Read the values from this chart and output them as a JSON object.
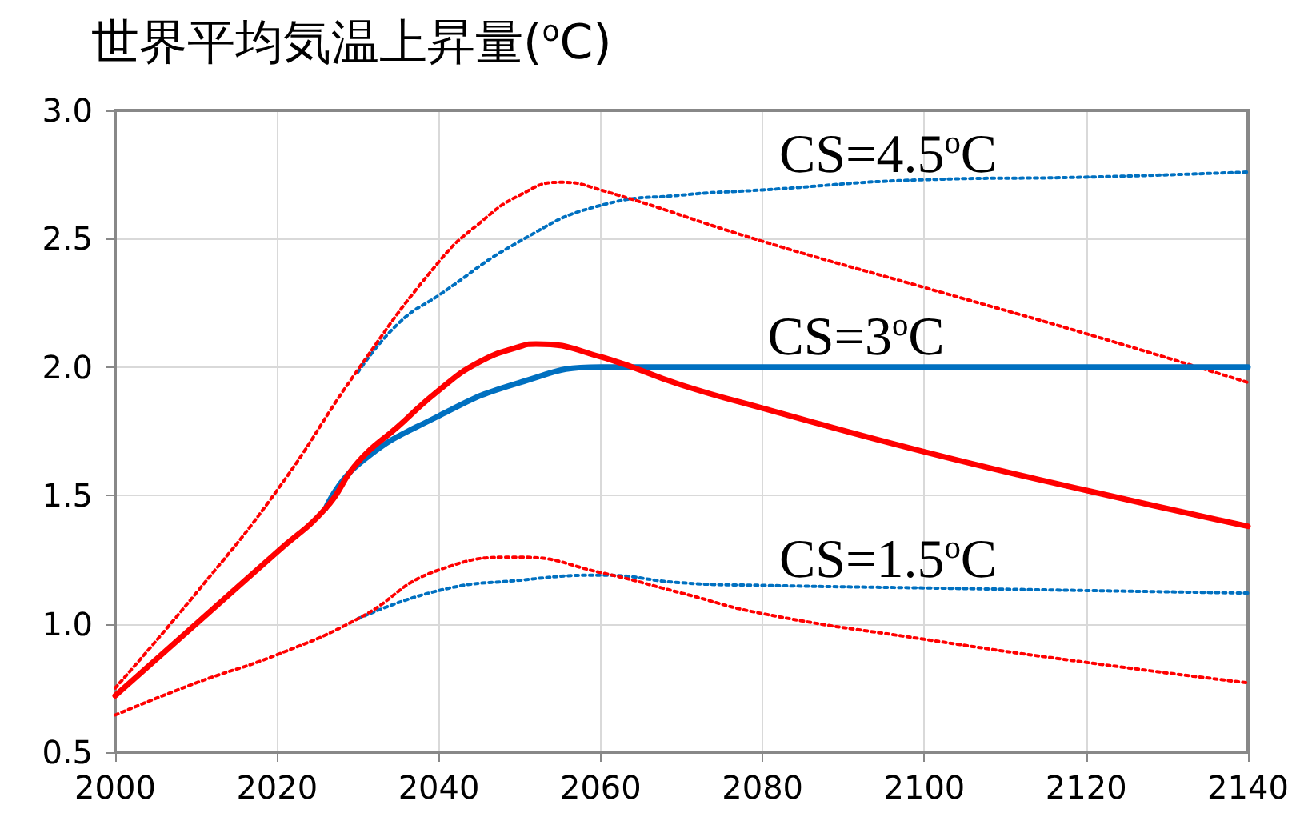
{
  "chart_data": {
    "type": "line",
    "title": "世界平均気温上昇量($^{o}$C)",
    "xlim": [
      2000,
      2140
    ],
    "xticks": [
      2000,
      2020,
      2040,
      2060,
      2080,
      2100,
      2120,
      2140
    ],
    "ylim": [
      0.5,
      3.0
    ],
    "yticks": [
      {
        "value": 0.5,
        "label": "0.5"
      },
      {
        "value": 1.0,
        "label": "1.0"
      },
      {
        "value": 1.5,
        "label": "1.5"
      },
      {
        "value": 2.0,
        "label": "2.0"
      },
      {
        "value": 2.5,
        "label": "2.5"
      },
      {
        "value": 3.0,
        "label": "3.0"
      }
    ],
    "grid": true,
    "marker": "none",
    "series": [
      {
        "color": "#0070c0",
        "line_style": "dotted",
        "x": [
          2030,
          2035,
          2040,
          2050,
          2060,
          2070,
          2080,
          2100,
          2120,
          2140
        ],
        "values": [
          1.98,
          2.17,
          2.28,
          2.49,
          2.63,
          2.67,
          2.69,
          2.73,
          2.74,
          2.76
        ]
      },
      {
        "color": "#ff0000",
        "line_style": "dotted",
        "x": [
          2000,
          2010,
          2020,
          2030,
          2040,
          2045,
          2050,
          2055,
          2060,
          2080,
          2100,
          2120,
          2140
        ],
        "values": [
          0.75,
          1.12,
          1.52,
          1.99,
          2.41,
          2.56,
          2.67,
          2.72,
          2.69,
          2.49,
          2.31,
          2.13,
          1.94
        ]
      },
      {
        "color": "#0070c0",
        "line_style": "solid",
        "x": [
          2026,
          2030,
          2040,
          2050,
          2060,
          2080,
          2100,
          2120,
          2140
        ],
        "values": [
          1.45,
          1.62,
          1.81,
          1.94,
          2.0,
          2.0,
          2.0,
          2.0,
          2.0
        ]
      },
      {
        "color": "#ff0000",
        "line_style": "solid",
        "x": [
          2000,
          2010,
          2020,
          2026,
          2030,
          2035,
          2040,
          2045,
          2050,
          2052,
          2060,
          2070,
          2080,
          2100,
          2120,
          2140
        ],
        "values": [
          0.72,
          1.0,
          1.28,
          1.45,
          1.63,
          1.77,
          1.91,
          2.02,
          2.08,
          2.09,
          2.04,
          1.93,
          1.84,
          1.67,
          1.52,
          1.38
        ]
      },
      {
        "color": "#0070c0",
        "line_style": "dotted",
        "x": [
          2030,
          2040,
          2050,
          2060,
          2070,
          2080,
          2100,
          2120,
          2140
        ],
        "values": [
          1.02,
          1.13,
          1.17,
          1.19,
          1.16,
          1.15,
          1.14,
          1.13,
          1.12
        ]
      },
      {
        "color": "#ff0000",
        "line_style": "dotted",
        "x": [
          2000,
          2010,
          2020,
          2030,
          2040,
          2050,
          2060,
          2070,
          2080,
          2100,
          2120,
          2140
        ],
        "values": [
          0.645,
          0.77,
          0.88,
          1.02,
          1.21,
          1.26,
          1.2,
          1.12,
          1.04,
          0.94,
          0.85,
          0.77
        ]
      }
    ],
    "annotations": [
      "CS=4.5$^{o}$C",
      "CS=3$^{o}$C",
      "CS=1.5$^{o}$C"
    ]
  }
}
